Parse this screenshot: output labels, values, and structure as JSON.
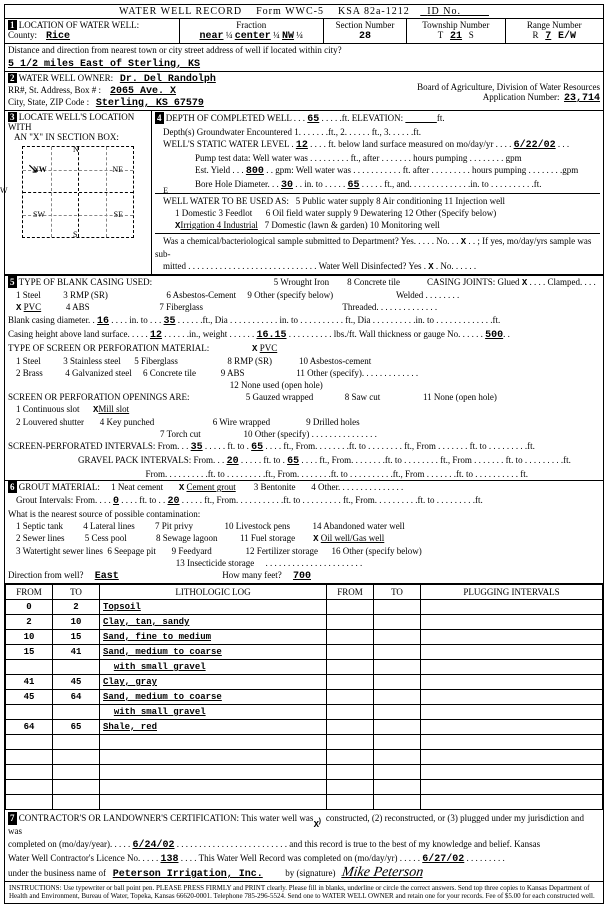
{
  "header": {
    "title": "WATER WELL RECORD",
    "form": "Form WWC-5",
    "ksa": "KSA 82a-1212",
    "id": "ID No."
  },
  "loc": {
    "label1": "1",
    "location_label": "LOCATION OF WATER WELL:",
    "county_label": "County:",
    "county": "Rice",
    "fraction_label": "Fraction",
    "fraction1": "near",
    "fraction1_sub": "¼",
    "fraction2": "center",
    "fraction2_sub": "¼",
    "fraction3": "NW",
    "fraction3_sub": "¼",
    "section_label": "Section Number",
    "section": "28",
    "township_label": "Township Number",
    "township_t": "T",
    "township": "21",
    "township_s": "S",
    "range_label": "Range Number",
    "range_r": "R",
    "range": "7",
    "range_ew": "E/W",
    "distance_label": "Distance and direction from nearest town or city street address of well if located within city?",
    "distance": "5 1/2 miles East of Sterling, KS"
  },
  "owner": {
    "num": "2",
    "label": "WATER WELL OWNER:",
    "name": "Dr. Del Randolph",
    "addr_label": "RR#, St. Address, Box #  :",
    "addr": "2065 Ave. X",
    "csz_label": "City, State, ZIP Code    :",
    "csz": "Sterling, KS  67579",
    "board": "Board of Agriculture, Division of Water Resources",
    "appno_label": "Application Number:",
    "appno": "23,714"
  },
  "sec3": {
    "num": "3",
    "label": "LOCATE WELL'S LOCATION WITH",
    "sub": "AN \"X\" IN SECTION BOX:",
    "compass": {
      "n": "N",
      "s": "S",
      "e": "E",
      "w": "W",
      "nw": "NW",
      "ne": "NE",
      "sw": "SW",
      "se": "SE"
    }
  },
  "sec4": {
    "num": "4",
    "depth_label": "DEPTH OF COMPLETED WELL . . .",
    "depth": "65",
    "depth_unit": ". . . . .ft.",
    "elev_label": "ELEVATION:",
    "depth_gw_label": "Depth(s) Groundwater Encountered   1. . . . . . .ft.,    2. . . . . . ft.,    3. . . . . .ft.",
    "static_label": "WELL'S STATIC WATER LEVEL .",
    "static": "12",
    "static_rest": ". . . . ft. below land surface measured on mo/day/yr . . . .",
    "static_date": "6/22/02",
    "pump_label": "Pump test data:   Well water was . . . . . . . . . ft., after . . . . . . . hours pumping . . . . . . . . gpm",
    "est_label": "Est. Yield . . .",
    "est": "800",
    "est_rest": ". . gpm:   Well water was . . . . . . . . . . . ft. after . . . . . . . . . hours pumping . . . . . . . .gpm",
    "bore_label": "Bore Hole Diameter. . .",
    "bore1": "30",
    "bore_mid": ". . in. to . . . . .",
    "bore2": "65",
    "bore_rest": ". . . . . ft., and. . . . . . . . . . . . . .in. to . . . . . . . . . .ft.",
    "use_label": "WELL WATER TO BE USED AS:",
    "uses_r1": "5 Public water supply     8 Air conditioning          11 Injection well",
    "uses_l1": "1 Domestic      3 Feedlot",
    "uses_l2": "Irrigation     4 Industrial",
    "uses_r2": "6 Oil field water supply   9 Dewatering               12 Other (Specify below)",
    "uses_r3": "7 Domestic (lawn & garden) 10 Monitoring well",
    "chem_label": "Was a chemical/bacteriological sample submitted to Department? Yes. . . . . No. . .",
    "chem_x": "X",
    "chem_rest": ". . ; If yes, mo/day/yrs sample was sub-",
    "chem_line2": "mitted . . . . . . . . . . . . . . . . . . . . . . . . . . . . . Water Well Disinfected? Yes .",
    "chem_x2": "X",
    "chem_line2_end": ".   No. . . . . ."
  },
  "sec5": {
    "num": "5",
    "label": "TYPE OF BLANK CASING USED:",
    "r1": "1 Steel          3 RMP (SR)                          6 Asbestos-Cement     9 Other (specify below)                            Welded . . . . . . . .",
    "r0": "                                                     5 Wrought Iron        8 Concrete tile            CASING JOINTS: Glued",
    "r0x": "X",
    "r0end": ". . . . Clamped. . . .",
    "r2_pvc": "PVC",
    "r2": "          4 ABS                               7 Fiberglass                                                              Threaded. . . . . . . . . . . . . .",
    "dia_label": "Blank casing diameter. .",
    "dia1": "16",
    "dia_mid": ". . . . in. to . . .",
    "dia2": "35",
    "dia_rest": ". . . . . .ft., Dia . . . . . . . . . . . in. to . . . . . . . . . . ft., Dia . . . . . . . . . .in. to . . . . . . . . . . . . .ft.",
    "height_label": "Casing height above land surface. . . . .",
    "height": "12",
    "height_mid": ". . . . . .in., weight . . . . . .",
    "weight": "16.15",
    "height_rest": ". . . . . . . . . . lbs./ft. Wall thickness or gauge No. . . . . .",
    "gauge": "500",
    "perf_label": "TYPE OF SCREEN OR PERFORATION MATERIAL:",
    "perf_r1": "1 Steel          3 Stainless steel      5 Fiberglass",
    "perf_pvc": "PVC",
    "perf_r1b": "                     8 RMP (SR)            10 Asbestos-cement",
    "perf_r2": "2 Brass          4 Galvanized steel     6 Concrete tile           9 ABS                       11 Other (specify). . . . . . . . . . . . .",
    "perf_r3": "                                                                                               12 None used (open hole)",
    "open_label": "SCREEN OR PERFORATION OPENINGS ARE:",
    "open_r1": "1 Continuous slot",
    "open_mill": "Mill slot",
    "open_r1b": "                        5 Gauzed wrapped              8 Saw cut                   11 None (open hole)",
    "open_r2": "2 Louvered shutter       4 Key punched                          6 Wire wrapped                9 Drilled holes",
    "open_r3": "                                                                7 Torch cut                   10 Other (specify) . . . . . . . . . . . . . . .",
    "sp_label": "SCREEN-PERFORATED INTERVALS:  From. . .",
    "sp_from": "35",
    "sp_mid": ". . . . . ft. to .",
    "sp_to": "65",
    "sp_rest": ". . . . ft., From. . . . . . . .ft. to . . . . . . . . ft., From . . . . . . . ft. to . . . . . . . . .ft.",
    "gp_label": "GRAVEL PACK INTERVALS:     From. . .",
    "gp_from": "20",
    "gp_mid": ". . . . . ft. to .",
    "gp_to": "65",
    "gp_rest": ". . . . ft., From. . . . . . . .ft. to . . . . . . . . ft., From . . . . . . . ft. to . . . . . . . . .ft.",
    "gp2": "                              From. . . . . . . . . .ft. to . . . . . . . . .ft., From. . . . . . . .ft. to . . . . . . . . . .ft., From . . . . . . .ft. to . . . . . . . . . . ft."
  },
  "sec6": {
    "num": "6",
    "label": "GROUT MATERIAL:",
    "r1": "1 Neat cement",
    "cement": "Cement grout",
    "r1b": "       3 Bentonite       4 Other. . . . . . . . . . . . . . .",
    "gi_label": "Grout Intervals:  From. . . .",
    "gi_from": "0",
    "gi_mid": ". . . . ft. to . .",
    "gi_to": "20",
    "gi_rest": ". . . . . ft., From. . . . . . . . . . .ft. to . . . . . . . . . ft., From. . . . . . . . . .ft. to . . . . . . . . .ft.",
    "contam_label": "What is the nearest source of possible contamination:",
    "contam_r1": "1 Septic tank         4 Lateral lines         7 Pit privy              10 Livestock pens          14 Abandoned water well",
    "contam_r2": "2 Sewer lines         5 Cess pool             8 Sewage lagoon          11 Fuel storage",
    "contam_oil": "Oil well/Gas well",
    "contam_r3": "3 Watertight sewer lines  6 Seepage pit       9 Feedyard               12 Fertilizer storage      16 Other (specify below)",
    "contam_r4": "                                                                       13 Insecticide storage     . . . . . . . . . . . . . . . . . . . . . .",
    "dir_label": "Direction from well?",
    "dir": "East",
    "feet_label": "How many feet?",
    "feet": "700"
  },
  "log_header": {
    "from": "FROM",
    "to": "TO",
    "lith": "LITHOLOGIC LOG",
    "plug": "PLUGGING INTERVALS"
  },
  "log_rows": [
    {
      "from": "0",
      "to": "2",
      "lith": "Topsoil"
    },
    {
      "from": "2",
      "to": "10",
      "lith": "Clay, tan, sandy"
    },
    {
      "from": "10",
      "to": "15",
      "lith": "Sand, fine to medium"
    },
    {
      "from": "15",
      "to": "41",
      "lith": "Sand, medium to coarse"
    },
    {
      "from": "",
      "to": "",
      "lith": "with small gravel",
      "style": "ul"
    },
    {
      "from": "41",
      "to": "45",
      "lith": "Clay, gray"
    },
    {
      "from": "45",
      "to": "64",
      "lith": "Sand, medium to coarse"
    },
    {
      "from": "",
      "to": "",
      "lith": "with small gravel",
      "style": "ul"
    },
    {
      "from": "64",
      "to": "65",
      "lith": "Shale, red"
    },
    {
      "from": "",
      "to": "",
      "lith": ""
    },
    {
      "from": "",
      "to": "",
      "lith": ""
    },
    {
      "from": "",
      "to": "",
      "lith": ""
    },
    {
      "from": "",
      "to": "",
      "lith": ""
    },
    {
      "from": "",
      "to": "",
      "lith": ""
    }
  ],
  "sec7": {
    "num": "7",
    "line1a": "CONTRACTOR'S OR LANDOWNER'S CERTIFICATION:  This water well was",
    "x1": "X",
    "line1b": "constructed, (2) reconstructed, or (3) plugged under my jurisdiction and was",
    "line2a": "completed on (mo/day/year). . . . .",
    "date1": "6/24/02",
    "line2b": ". . . . . . . . . . . . . . . . . . . . . . . . . and this record is true to the best of my knowledge and belief. Kansas",
    "line3a": "Water Well Contractor's Licence No. . . . .",
    "lic": "138",
    "line3b": ". . . . This Water Well Record was completed on (mo/day/yr) . . . . .",
    "date2": "6/27/02",
    "line3c": ". . . . . . . . .",
    "line4a": "under the business name of",
    "biz": "Peterson Irrigation, Inc.",
    "sig_label": "by (signature)",
    "sig": "Mike Peterson"
  },
  "instructions": "INSTRUCTIONS: Use typewriter or ball point pen. PLEASE PRESS FIRMLY and PRINT clearly. Please fill in blanks, underline or circle the correct answers. Send top three copies to Kansas Department of Health and Environment, Bureau of Water, Topeka, Kansas 66620-0001. Telephone 785-296-5524. Send one to WATER WELL OWNER and retain one for your records. Fee of $5.00 for each constructed well."
}
